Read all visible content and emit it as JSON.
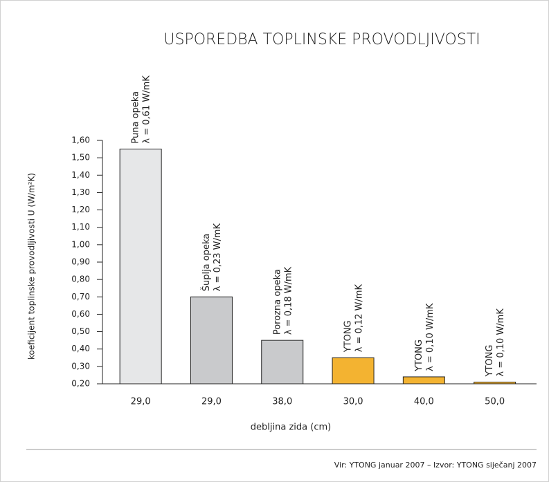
{
  "chart_data": {
    "type": "bar",
    "title": "USPOREDBA TOPLINSKE PROVODLJIVOSTI",
    "x_label": "debljina zida (cm)",
    "y_label": "koeficijent toplinske provodljivosti U (W/m²K)",
    "source": "Vir: YTONG januar 2007 – Izvor: YTONG siječanj 2007",
    "categories": [
      "29,0",
      "29,0",
      "38,0",
      "30,0",
      "40,0",
      "50,0"
    ],
    "values": [
      1.55,
      0.7,
      0.45,
      0.35,
      0.24,
      0.21
    ],
    "colors": [
      "#e6e7e8",
      "#c9cacc",
      "#c9cacc",
      "#f3b331",
      "#f3b331",
      "#f3b331"
    ],
    "bar_labels": [
      [
        "Puna opeka",
        "λ = 0,61 W/mK"
      ],
      [
        "Šuplja opeka",
        "λ = 0,23 W/mK"
      ],
      [
        "Porozna opeka",
        "λ = 0,18 W/mK"
      ],
      [
        "YTONG",
        "λ = 0,12 W/mK"
      ],
      [
        "YTONG",
        "λ = 0,10 W/mK"
      ],
      [
        "YTONG",
        "λ = 0,10 W/mK"
      ]
    ],
    "ylim": [
      0.2,
      1.6
    ],
    "yticks": [
      {
        "value": 0.2,
        "label": "0,20"
      },
      {
        "value": 0.3,
        "label": "0,30"
      },
      {
        "value": 0.4,
        "label": "0,40"
      },
      {
        "value": 0.5,
        "label": "0,50"
      },
      {
        "value": 0.6,
        "label": "0,60"
      },
      {
        "value": 0.7,
        "label": "0,70"
      },
      {
        "value": 0.8,
        "label": "0,80"
      },
      {
        "value": 0.9,
        "label": "0,90"
      },
      {
        "value": 1.0,
        "label": "1,00"
      },
      {
        "value": 1.1,
        "label": "1,10"
      },
      {
        "value": 1.2,
        "label": "1,20"
      },
      {
        "value": 1.3,
        "label": "1,30"
      },
      {
        "value": 1.4,
        "label": "1,40"
      },
      {
        "value": 1.5,
        "label": "1,50"
      },
      {
        "value": 1.6,
        "label": "1,60"
      }
    ],
    "grid": false
  }
}
